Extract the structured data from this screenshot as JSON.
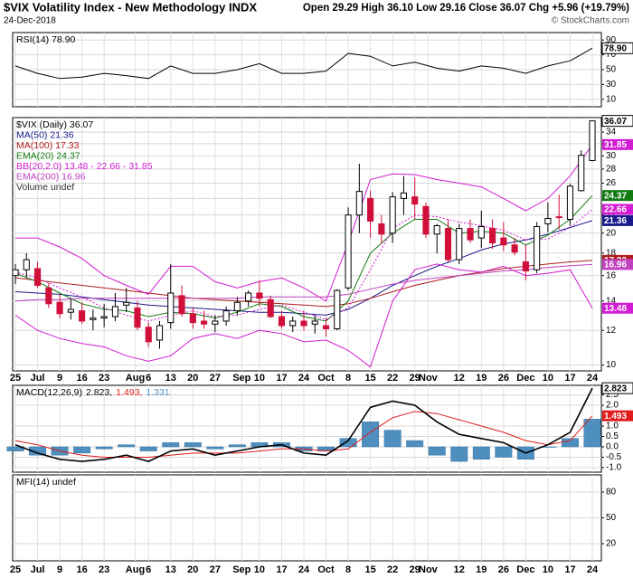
{
  "header": {
    "title": "$VIX Volatility Index - New Methodology INDX",
    "date": "24-Dec-2018",
    "quote": "Open 29.29  High 36.10  Low 29.16  Close 36.07  Chg +5.96 (+19.79%)",
    "source": "© StockCharts.com"
  },
  "chart_data": [
    {
      "type": "line",
      "x": [
        0,
        1,
        2,
        3,
        4,
        5,
        6,
        7,
        8,
        9,
        10,
        11,
        12,
        13,
        14,
        15,
        16,
        17,
        18,
        19,
        20,
        21,
        22,
        23,
        24,
        25,
        26
      ],
      "xlim": [
        0,
        26
      ],
      "ylim": [
        0,
        100
      ],
      "yticks": [
        90,
        70,
        50,
        30,
        10
      ],
      "grid": true,
      "series": [
        {
          "name": "RSI(14) 78.90",
          "color": "#000000",
          "last_value_box": true,
          "values": [
            55,
            45,
            38,
            40,
            45,
            42,
            38,
            55,
            45,
            45,
            50,
            58,
            45,
            45,
            48,
            72,
            68,
            55,
            60,
            52,
            48,
            55,
            52,
            45,
            55,
            62,
            78.9
          ],
          "value_labels": [
            null,
            null,
            null,
            null,
            null,
            null,
            null,
            null,
            null,
            null,
            null,
            null,
            null,
            null,
            null,
            null,
            null,
            null,
            null,
            null,
            null,
            null,
            null,
            null,
            null,
            null,
            "78.90"
          ]
        }
      ]
    },
    {
      "type": "candlestick",
      "name": "$VIX (Daily) 36.07",
      "log_scale": true,
      "grid": true,
      "xlim": [
        0,
        26
      ],
      "ylim": [
        9.7,
        36.7
      ],
      "yticks": [
        10,
        12,
        14,
        16,
        18,
        20,
        22,
        24,
        26,
        28,
        30,
        32,
        34
      ],
      "xticks": [
        {
          "value": 0,
          "label": "25"
        },
        {
          "value": 1,
          "label": "Jul"
        },
        {
          "value": 2,
          "label": "9"
        },
        {
          "value": 3,
          "label": "16"
        },
        {
          "value": 4,
          "label": "23"
        },
        {
          "value": 5.4,
          "label": "Aug"
        },
        {
          "value": 6,
          "label": "6"
        },
        {
          "value": 7,
          "label": "13"
        },
        {
          "value": 8,
          "label": "20"
        },
        {
          "value": 9,
          "label": "27"
        },
        {
          "value": 10.2,
          "label": "Sep"
        },
        {
          "value": 11,
          "label": "10"
        },
        {
          "value": 12,
          "label": "17"
        },
        {
          "value": 13,
          "label": "24"
        },
        {
          "value": 14,
          "label": "Oct"
        },
        {
          "value": 15,
          "label": "8"
        },
        {
          "value": 16,
          "label": "15"
        },
        {
          "value": 17,
          "label": "22"
        },
        {
          "value": 18,
          "label": "29"
        },
        {
          "value": 18.6,
          "label": "Nov"
        },
        {
          "value": 20,
          "label": "12"
        },
        {
          "value": 21,
          "label": "19"
        },
        {
          "value": 22,
          "label": "26"
        },
        {
          "value": 23,
          "label": "Dec"
        },
        {
          "value": 24,
          "label": "10"
        },
        {
          "value": 25,
          "label": "17"
        },
        {
          "value": 26,
          "label": "24"
        }
      ],
      "up_color": "#000000",
      "down_color": "#d0103a",
      "x": [
        0,
        0.5,
        1,
        1.5,
        2,
        2.5,
        3,
        3.5,
        4,
        4.5,
        5,
        5.5,
        6,
        6.5,
        7,
        7.5,
        8,
        8.5,
        9,
        9.5,
        10,
        10.5,
        11,
        11.5,
        12,
        12.5,
        13,
        13.5,
        14,
        14.5,
        15,
        15.5,
        16,
        16.5,
        17,
        17.5,
        18,
        18.5,
        19,
        19.5,
        20,
        20.5,
        21,
        21.5,
        22,
        22.5,
        23,
        23.5,
        24,
        24.5,
        25,
        25.5,
        26
      ],
      "open": [
        16.0,
        16.5,
        16.6,
        15.0,
        13.9,
        13.2,
        13.3,
        12.7,
        12.8,
        12.9,
        13.7,
        13.5,
        12.2,
        11.4,
        12.5,
        14.4,
        13.1,
        12.6,
        12.4,
        12.6,
        13.3,
        14.0,
        14.6,
        14.1,
        12.9,
        12.3,
        12.6,
        12.4,
        12.3,
        12.1,
        15.0,
        22.0,
        24.0,
        21.0,
        20.0,
        24.0,
        24.2,
        23.0,
        19.9,
        20.5,
        17.4,
        20.5,
        19.5,
        20.5,
        19.5,
        18.8,
        17.2,
        16.5,
        21.0,
        21.8,
        21.5,
        25.0,
        29.29
      ],
      "high": [
        17.0,
        18.0,
        17.2,
        15.4,
        14.5,
        14.2,
        13.9,
        13.4,
        13.8,
        14.6,
        15.0,
        14.0,
        12.5,
        12.6,
        17.0,
        15.2,
        13.5,
        13.3,
        13.0,
        13.6,
        14.3,
        14.8,
        15.6,
        14.4,
        13.3,
        12.9,
        13.3,
        13.0,
        12.8,
        14.9,
        22.9,
        28.8,
        25.0,
        22.0,
        24.8,
        27.0,
        26.8,
        23.5,
        21.0,
        21.5,
        21.0,
        21.5,
        22.5,
        21.5,
        21.2,
        19.5,
        18.8,
        21.2,
        23.5,
        24.5,
        25.9,
        30.9,
        36.1
      ],
      "low": [
        15.3,
        15.8,
        15.0,
        13.5,
        12.8,
        12.7,
        12.4,
        12.0,
        12.2,
        12.6,
        13.2,
        12.0,
        11.0,
        10.9,
        12.1,
        12.9,
        12.1,
        12.1,
        11.9,
        12.3,
        13.0,
        13.6,
        13.6,
        12.8,
        12.1,
        11.9,
        12.0,
        11.8,
        11.6,
        12.0,
        14.8,
        20.0,
        19.5,
        18.9,
        19.0,
        22.0,
        21.5,
        19.5,
        18.0,
        17.2,
        17.0,
        19.0,
        18.5,
        18.4,
        18.2,
        17.8,
        15.6,
        16.2,
        20.1,
        20.4,
        20.8,
        24.9,
        29.16
      ],
      "close": [
        16.5,
        17.4,
        15.2,
        13.8,
        13.1,
        13.4,
        12.6,
        12.8,
        12.9,
        13.6,
        13.9,
        12.2,
        11.3,
        12.3,
        14.6,
        13.1,
        12.5,
        12.4,
        12.6,
        13.3,
        13.9,
        14.6,
        14.2,
        12.9,
        12.3,
        12.6,
        12.3,
        12.6,
        12.1,
        14.8,
        22.0,
        24.9,
        21.3,
        19.9,
        24.2,
        24.7,
        23.3,
        19.9,
        20.8,
        17.4,
        20.5,
        19.3,
        20.7,
        19.0,
        18.8,
        18.1,
        16.4,
        20.7,
        21.6,
        21.7,
        25.6,
        30.1,
        36.07
      ],
      "line_x": [
        0,
        1,
        2,
        3,
        4,
        5,
        6,
        7,
        8,
        9,
        10,
        11,
        12,
        13,
        14,
        15,
        16,
        17,
        18,
        19,
        20,
        21,
        22,
        23,
        24,
        25,
        26
      ],
      "lines": [
        {
          "name": "MA(50) 21.36",
          "color": "#1a1a8c",
          "last_value_box": true,
          "values": [
            14.7,
            14.6,
            14.5,
            14.3,
            14.1,
            13.9,
            13.7,
            13.6,
            13.5,
            13.4,
            13.3,
            13.2,
            13.2,
            13.1,
            13.0,
            13.4,
            14.2,
            15.2,
            16.0,
            16.8,
            17.5,
            18.3,
            18.9,
            19.3,
            19.9,
            20.6,
            21.36
          ]
        },
        {
          "name": "MA(100) 17.33",
          "color": "#b01c1c",
          "last_value_box": true,
          "values": [
            15.8,
            15.6,
            15.4,
            15.2,
            15.0,
            14.8,
            14.6,
            14.4,
            14.2,
            14.1,
            14.0,
            13.9,
            13.8,
            13.7,
            13.6,
            13.8,
            14.2,
            14.7,
            15.2,
            15.6,
            16.0,
            16.3,
            16.6,
            16.8,
            17.0,
            17.2,
            17.33
          ]
        },
        {
          "name": "EMA(20) 24.37",
          "color": "#117a11",
          "last_value_box": true,
          "values": [
            16.2,
            15.5,
            14.6,
            13.8,
            13.4,
            13.3,
            12.9,
            13.2,
            13.1,
            12.8,
            13.2,
            13.8,
            13.6,
            12.9,
            12.6,
            14.0,
            18.0,
            20.0,
            21.5,
            21.5,
            20.0,
            20.2,
            20.0,
            18.8,
            19.8,
            21.5,
            24.37
          ]
        },
        {
          "name": "BB(20,2.0) 13.48 - 22.66 - 31.85",
          "color": "#d21bd2",
          "last_value_box": true,
          "values": [
            19.5,
            19.5,
            18.6,
            17.5,
            16.0,
            15.2,
            14.5,
            16.8,
            16.8,
            15.5,
            15.0,
            15.5,
            15.8,
            15.0,
            14.0,
            19.0,
            26.5,
            27.3,
            27.2,
            26.5,
            26.0,
            25.5,
            24.0,
            22.5,
            24.0,
            27.0,
            31.85
          ]
        },
        {
          "color": "#d21bd2",
          "dashed": true,
          "last_value_box": true,
          "values": [
            16.3,
            15.8,
            15.0,
            14.3,
            13.5,
            13.0,
            12.6,
            13.0,
            13.3,
            12.9,
            13.0,
            13.4,
            13.7,
            13.2,
            12.7,
            13.5,
            16.5,
            20.5,
            22.0,
            21.8,
            21.2,
            20.8,
            20.3,
            19.3,
            19.4,
            20.6,
            22.66
          ]
        },
        {
          "color": "#d21bd2",
          "last_value_box": true,
          "values": [
            13.0,
            12.0,
            11.5,
            11.2,
            11.0,
            10.5,
            10.2,
            10.5,
            11.5,
            11.8,
            11.5,
            12.0,
            11.8,
            11.3,
            11.4,
            10.8,
            9.9,
            14.0,
            16.5,
            17.0,
            16.5,
            16.3,
            16.8,
            16.0,
            16.2,
            16.5,
            13.48
          ]
        },
        {
          "name": "EMA(200) 16.96",
          "color": "#c040c0",
          "last_value_box": true,
          "values": [
            14.0,
            14.1,
            14.1,
            14.2,
            14.2,
            14.2,
            14.2,
            14.2,
            14.2,
            14.2,
            14.2,
            14.3,
            14.3,
            14.3,
            14.3,
            14.5,
            14.9,
            15.3,
            15.6,
            15.8,
            16.0,
            16.2,
            16.4,
            16.5,
            16.7,
            16.85,
            16.96
          ]
        }
      ],
      "notes": [
        "Volume undef"
      ]
    },
    {
      "type": "combo",
      "title": "MACD(12,26,9)",
      "x": [
        0,
        1,
        2,
        3,
        4,
        5,
        6,
        7,
        8,
        9,
        10,
        11,
        12,
        13,
        14,
        15,
        16,
        17,
        18,
        19,
        20,
        21,
        22,
        23,
        24,
        25,
        26
      ],
      "xlim": [
        0,
        26
      ],
      "ylim": [
        -1.22,
        2.96
      ],
      "grid": true,
      "yticks": [
        2.5,
        {
          "value": 2,
          "label": "2.0"
        },
        {
          "value": 1,
          "label": "1.0"
        },
        0.5,
        {
          "value": 0,
          "label": "0.0"
        },
        -0.5,
        {
          "value": -1,
          "label": "-1.0"
        }
      ],
      "series": [
        {
          "name": "1.331",
          "mark": "bar",
          "color": "#4f8fbf",
          "values": [
            -0.2,
            -0.4,
            -0.4,
            -0.3,
            -0.1,
            0.1,
            -0.2,
            0.2,
            0.2,
            -0.1,
            0.1,
            0.2,
            0.2,
            -0.2,
            -0.2,
            0.4,
            1.2,
            0.8,
            0.3,
            -0.4,
            -0.7,
            -0.6,
            -0.5,
            -0.6,
            0.0,
            0.4,
            1.331
          ]
        },
        {
          "name": "1.493,",
          "mark": "line",
          "color": "#e01b1b",
          "last_value_box": true,
          "values": [
            0.3,
            0.1,
            -0.2,
            -0.4,
            -0.5,
            -0.5,
            -0.5,
            -0.4,
            -0.3,
            -0.3,
            -0.3,
            -0.2,
            -0.1,
            -0.1,
            -0.2,
            -0.1,
            0.7,
            1.4,
            1.7,
            1.6,
            1.3,
            1.0,
            0.7,
            0.3,
            0.1,
            0.3,
            1.493
          ]
        },
        {
          "name": "2.823,",
          "mark": "line",
          "color": "#000000",
          "last_value_box": true,
          "values": [
            0.1,
            -0.3,
            -0.6,
            -0.7,
            -0.6,
            -0.4,
            -0.7,
            -0.2,
            -0.1,
            -0.4,
            -0.2,
            0.0,
            0.1,
            -0.3,
            -0.4,
            0.3,
            1.9,
            2.2,
            2.0,
            1.2,
            0.6,
            0.4,
            0.2,
            -0.3,
            0.1,
            0.7,
            2.823
          ]
        }
      ]
    },
    {
      "type": "line",
      "title": "MFI(14) undef",
      "xlim": [
        0,
        26
      ],
      "ylim": [
        0,
        100
      ],
      "yticks": [
        80,
        50,
        20
      ],
      "grid": true,
      "series": []
    }
  ]
}
